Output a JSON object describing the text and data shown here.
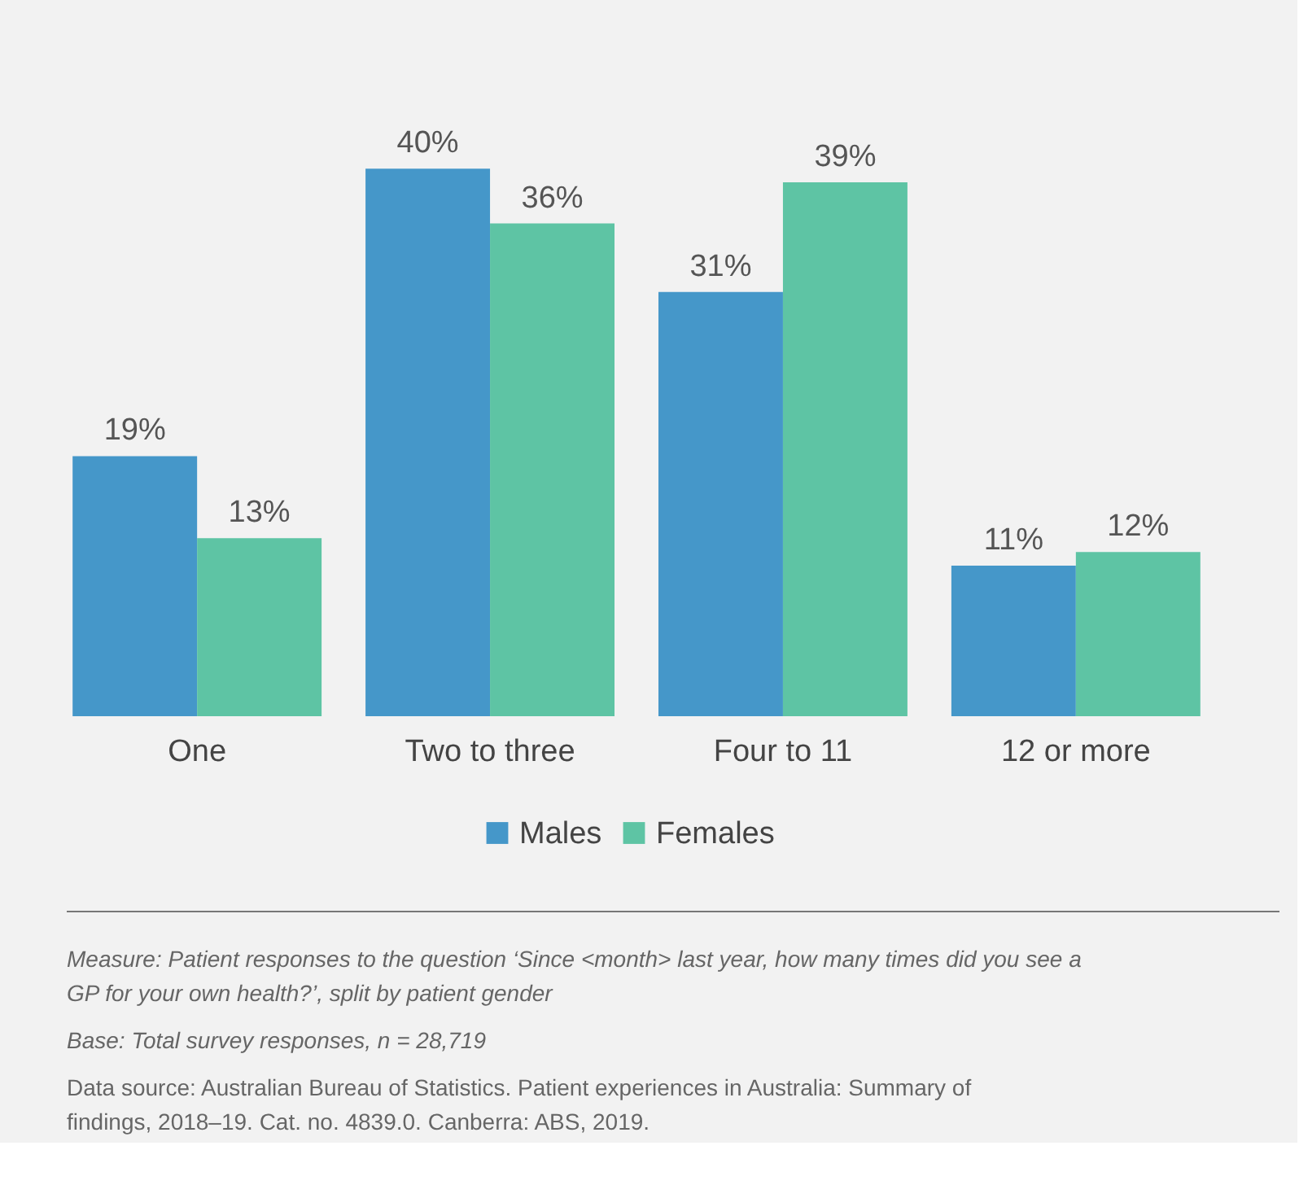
{
  "chart_data": {
    "type": "bar",
    "categories": [
      "One",
      "Two to three",
      "Four to 11",
      "12 or more"
    ],
    "series": [
      {
        "name": "Males",
        "color": "#4597c9",
        "values": [
          19,
          40,
          31,
          11
        ],
        "value_labels": [
          "19%",
          "40%",
          "31%",
          "11%"
        ]
      },
      {
        "name": "Females",
        "color": "#5ec4a4",
        "values": [
          13,
          36,
          39,
          12
        ],
        "value_labels": [
          "13%",
          "36%",
          "39%",
          "12%"
        ]
      }
    ],
    "legend": "bottom",
    "grid": false,
    "annotations": [
      "Measure: Patient responses to the question ‘Since <month> last year, how many times did you see a GP for your own health?’, split by patient gender",
      "Base: Total survey responses, n = 28,719",
      "Data source: Australian Bureau of Statistics. Patient experiences in Australia: Summary of findings, 2018–19. Cat. no. 4839.0. Canberra: ABS, 2019."
    ]
  }
}
